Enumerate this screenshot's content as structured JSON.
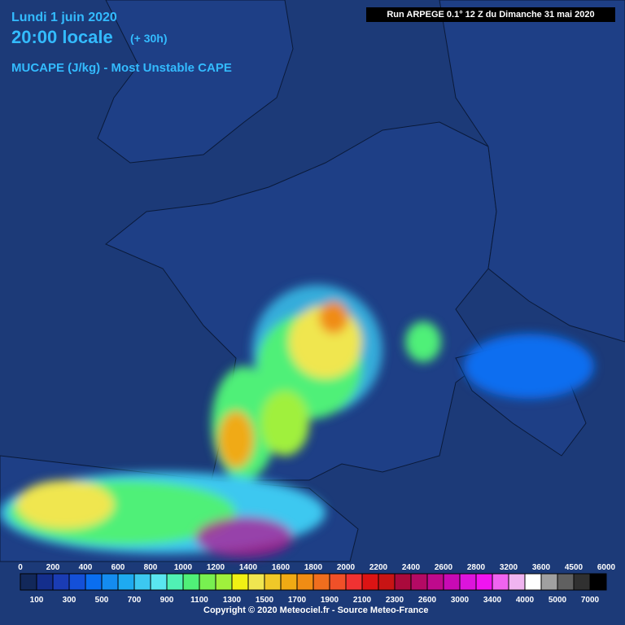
{
  "header": {
    "date": "Lundi 1 juin 2020",
    "time": "20:00 locale",
    "lead": "(+ 30h)",
    "parameter": "MUCAPE (J/kg) - Most Unstable CAPE",
    "run": "Run ARPEGE 0.1° 12 Z du Dimanche 31 mai 2020"
  },
  "legend": {
    "colors": [
      "#12285a",
      "#142e8c",
      "#1a3cb4",
      "#1450d8",
      "#0a6ef0",
      "#148cf0",
      "#1eaaf0",
      "#3cc8f0",
      "#5ae6f0",
      "#50f0b4",
      "#50f078",
      "#78f050",
      "#a0f03c",
      "#f0f014",
      "#f0e650",
      "#f0c828",
      "#f0aa14",
      "#f08c14",
      "#f06e1e",
      "#f05028",
      "#f03232",
      "#dc1414",
      "#c81414",
      "#aa0a3c",
      "#b40a64",
      "#be0a8c",
      "#c80ab4",
      "#dc14dc",
      "#f014f0",
      "#f064f0",
      "#f0b4f0",
      "#ffffff",
      "#a0a0a0",
      "#606060",
      "#303030",
      "#000000"
    ],
    "top_labels": [
      0,
      200,
      400,
      600,
      800,
      1000,
      1200,
      1400,
      1600,
      1800,
      2000,
      2200,
      2400,
      2600,
      2800,
      3200,
      3600,
      4500,
      6000
    ],
    "bottom_labels": [
      100,
      300,
      500,
      700,
      900,
      1100,
      1300,
      1500,
      1700,
      1900,
      2100,
      2300,
      2600,
      3000,
      3400,
      4000,
      5000,
      7000
    ]
  },
  "footer": "Copyright © 2020 Meteociel.fr - Source Meteo-France"
}
